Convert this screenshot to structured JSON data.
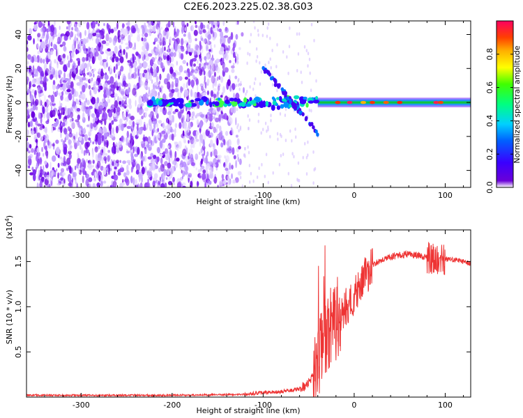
{
  "figure": {
    "title": "C2E6.2023.225.02.38.G03"
  },
  "chart_data": [
    {
      "type": "heatmap",
      "title": "C2E6.2023.225.02.38.G03",
      "xlabel": "Height of straight line (km)",
      "ylabel": "Frequency (Hz)",
      "xlim": [
        -360,
        128
      ],
      "ylim": [
        -50,
        48
      ],
      "xticks": [
        -300,
        -200,
        -100,
        0,
        100
      ],
      "xtick_labels": [
        "-300",
        "-200",
        "-100",
        "0",
        "100"
      ],
      "yticks": [
        -40,
        -20,
        0,
        20,
        40
      ],
      "ytick_labels": [
        "-40",
        "-20",
        "0",
        "20",
        "40"
      ],
      "colorscale": "rainbow (purple=0 to red=1)",
      "colorbar": {
        "label": "Normalized spectral amplitude",
        "range": [
          0,
          1
        ],
        "ticks": [
          0.0,
          0.2,
          0.4,
          0.6,
          0.8
        ],
        "tick_labels": [
          "0.0",
          "0.2",
          "0.4",
          "0.6",
          "0.8"
        ]
      },
      "features": [
        {
          "name": "carrier",
          "x_range": [
            -40,
            128
          ],
          "y": 0,
          "amplitude": 0.9
        },
        {
          "name": "carrier-broken",
          "x_range": [
            -225,
            -40
          ],
          "y": 0,
          "amplitude": 0.4
        },
        {
          "name": "branch",
          "x_range": [
            -100,
            -40
          ],
          "y_range": [
            20,
            -18
          ],
          "amplitude": 0.15
        },
        {
          "name": "noise",
          "x_range": [
            -360,
            -130
          ],
          "y_range": [
            -50,
            48
          ],
          "amplitude": 0.08
        }
      ]
    },
    {
      "type": "line",
      "xlabel": "Height of straight line (km)",
      "ylabel": "SNR (10 * v/v)",
      "yunit": "(x10^4)",
      "yunit_base": "(x10",
      "yunit_exp": "4",
      "yunit_close": ")",
      "xlim": [
        -360,
        128
      ],
      "ylim": [
        0,
        1.85
      ],
      "xticks": [
        -300,
        -200,
        -100,
        0,
        100
      ],
      "xtick_labels": [
        "-300",
        "-200",
        "-100",
        "0",
        "100"
      ],
      "yticks": [
        0.5,
        1.0,
        1.5
      ],
      "ytick_labels": [
        "0.5",
        "1.0",
        "1.5"
      ],
      "color": "#ee3333",
      "series": [
        {
          "x": [
            -360,
            -300,
            -200,
            -120,
            -100,
            -80,
            -60,
            -50,
            -40,
            -35,
            -30,
            -25,
            -20,
            -15,
            -10,
            -5,
            0,
            10,
            20,
            30,
            40,
            50,
            60,
            70,
            80,
            90,
            100,
            110,
            120,
            128
          ],
          "values": [
            0.02,
            0.02,
            0.02,
            0.03,
            0.05,
            0.06,
            0.09,
            0.15,
            0.35,
            0.6,
            0.7,
            0.8,
            0.85,
            0.95,
            1.0,
            1.05,
            1.1,
            1.3,
            1.45,
            1.52,
            1.55,
            1.57,
            1.58,
            1.57,
            1.55,
            1.52,
            1.52,
            1.52,
            1.5,
            1.48
          ]
        }
      ]
    }
  ]
}
